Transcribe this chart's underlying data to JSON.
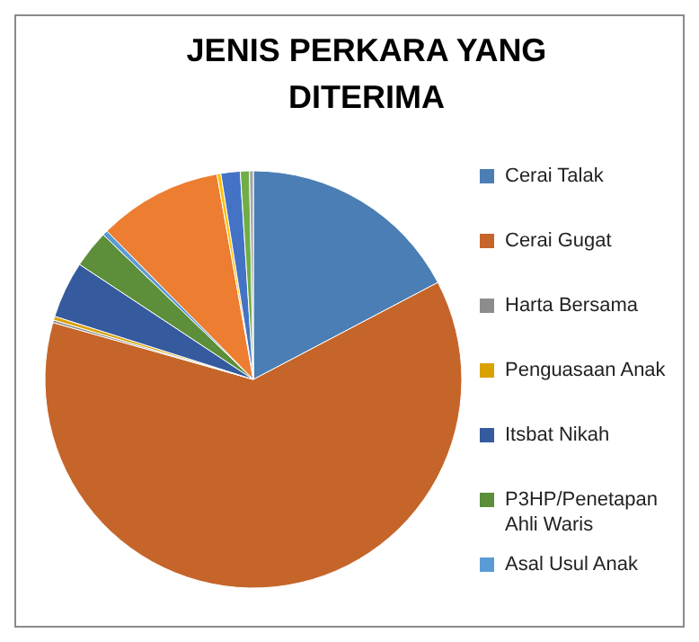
{
  "chart_data": {
    "type": "pie",
    "title": "JENIS PERKARA YANG DITERIMA",
    "categories": [
      "Cerai Talak",
      "Cerai Gugat",
      "Harta Bersama",
      "Penguasaan Anak",
      "Itsbat Nikah",
      "P3HP/Penetapan Ahli Waris",
      "Asal Usul Anak",
      null,
      null,
      null,
      null,
      null
    ],
    "values": [
      17.3,
      62.1,
      0.2,
      0.3,
      4.4,
      2.9,
      0.4,
      9.6,
      0.3,
      1.5,
      0.7,
      0.3
    ],
    "colors": [
      "#4a7eb4",
      "#c5652a",
      "#8c8c8c",
      "#d9a200",
      "#355a9e",
      "#5d8e3a",
      "#5b9bd5",
      "#ed7d31",
      "#ffc000",
      "#4472c4",
      "#70ad47",
      "#a5a5a5"
    ],
    "legend": "right"
  }
}
